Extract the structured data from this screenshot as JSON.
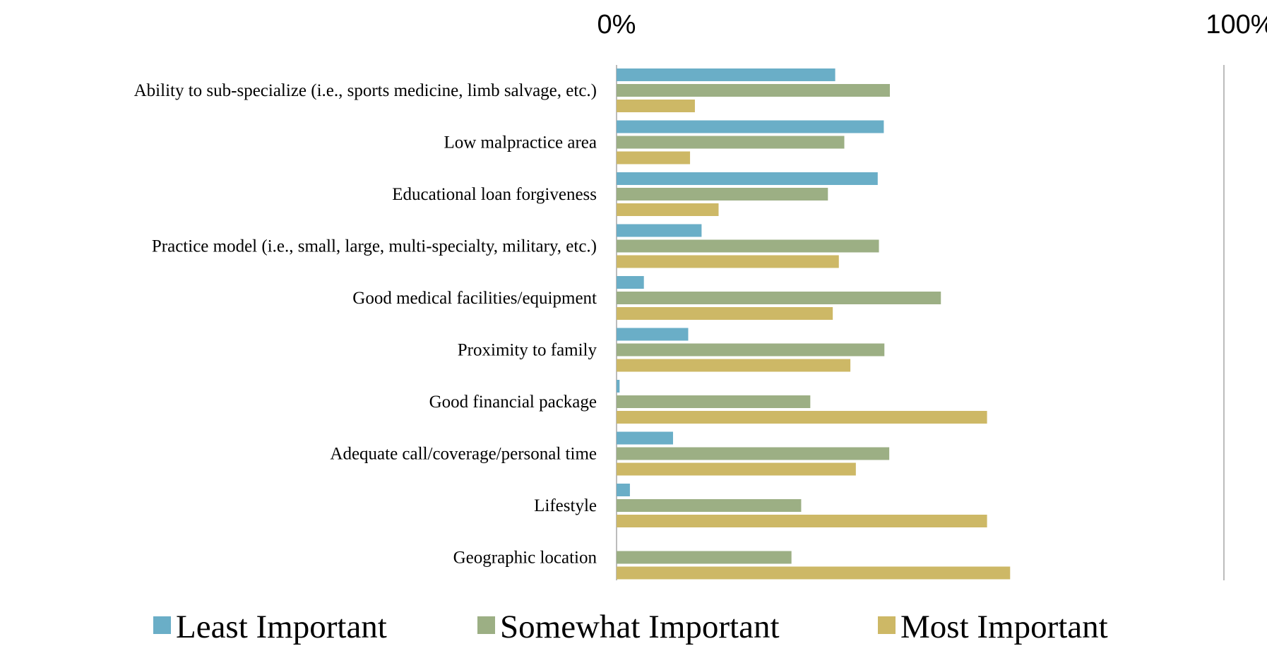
{
  "chart_data": {
    "type": "bar",
    "orientation": "horizontal",
    "x_tick_labels": [
      "0%",
      "100%"
    ],
    "xlim": [
      0,
      100
    ],
    "grid": false,
    "legend_position": "bottom",
    "categories": [
      "Ability to sub-specialize (i.e., sports medicine, limb salvage, etc.)",
      "Low malpractice area",
      "Educational loan forgiveness",
      "Practice model (i.e., small, large, multi-specialty, military, etc.)",
      "Good medical facilities/equipment",
      "Proximity to family",
      "Good financial package",
      "Adequate call/coverage/personal time",
      "Lifestyle",
      "Geographic location"
    ],
    "series": [
      {
        "name": "Least Important",
        "color": "#6aaec7",
        "values": [
          36,
          44,
          43,
          14,
          4.5,
          11.8,
          0.5,
          9.3,
          2.2,
          0
        ]
      },
      {
        "name": "Somewhat Important",
        "color": "#9caf84",
        "values": [
          45,
          37.5,
          34.8,
          43.2,
          53.4,
          44.1,
          31.9,
          44.9,
          30.4,
          28.8
        ]
      },
      {
        "name": "Most Important",
        "color": "#cdb866",
        "values": [
          12.9,
          12.1,
          16.8,
          36.6,
          35.6,
          38.5,
          61,
          39.4,
          61,
          64.8
        ]
      }
    ]
  }
}
